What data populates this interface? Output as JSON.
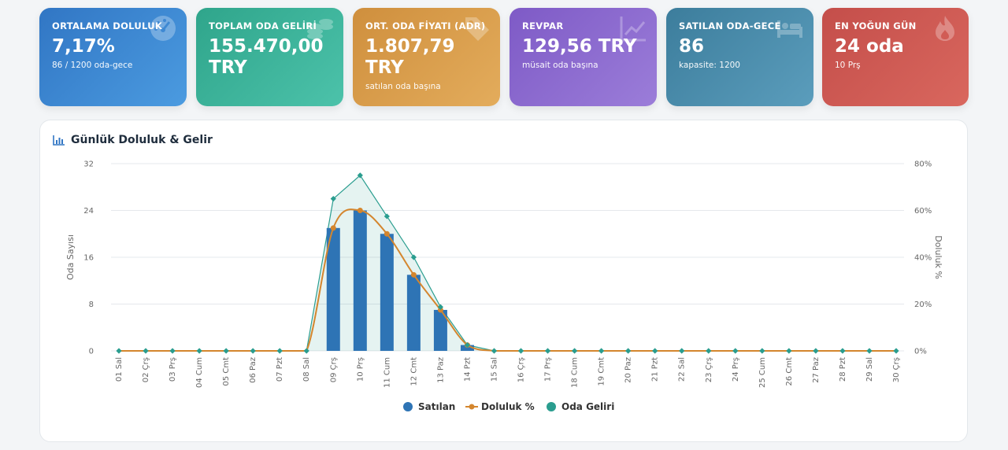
{
  "cards": [
    {
      "label": "ORTALAMA DOLULUK",
      "value": "7,17%",
      "sub": "86 / 1200 oda-gece",
      "icon": "gauge-icon"
    },
    {
      "label": "TOPLAM ODA GELİRİ",
      "value": "155.470,00 TRY",
      "sub": "",
      "icon": "coins-icon"
    },
    {
      "label": "ORT. ODA FİYATI (ADR)",
      "value": "1.807,79 TRY",
      "sub": "satılan oda başına",
      "icon": "tag-icon"
    },
    {
      "label": "REVPAR",
      "value": "129,56 TRY",
      "sub": "müsait oda başına",
      "icon": "chart-line-icon"
    },
    {
      "label": "SATILAN ODA-GECE",
      "value": "86",
      "sub": "kapasite: 1200",
      "icon": "bed-icon"
    },
    {
      "label": "EN YOĞUN GÜN",
      "value": "24 oda",
      "sub": "10 Prş",
      "icon": "fire-icon"
    }
  ],
  "panel": {
    "title": "Günlük Doluluk & Gelir",
    "icon": "chart-bar-icon"
  },
  "colors": {
    "sold": "#2e74b5",
    "occupancy": "#d4862e",
    "revenue": "#2a9d8f"
  },
  "chart_data": {
    "type": "bar",
    "categories": [
      "01 Sal",
      "02 Çrş",
      "03 Prş",
      "04 Cum",
      "05 Cmt",
      "06 Paz",
      "07 Pzt",
      "08 Sal",
      "09 Çrş",
      "10 Prş",
      "11 Cum",
      "12 Cmt",
      "13 Paz",
      "14 Pzt",
      "15 Sal",
      "16 Çrş",
      "17 Prş",
      "18 Cum",
      "19 Cmt",
      "20 Paz",
      "21 Pzt",
      "22 Sal",
      "23 Çrş",
      "24 Prş",
      "25 Cum",
      "26 Cmt",
      "27 Paz",
      "28 Pzt",
      "29 Sal",
      "30 Çrş"
    ],
    "series": [
      {
        "name": "Satılan",
        "type": "bar",
        "axis": "left",
        "values": [
          0,
          0,
          0,
          0,
          0,
          0,
          0,
          0,
          21,
          24,
          20,
          13,
          7,
          1,
          0,
          0,
          0,
          0,
          0,
          0,
          0,
          0,
          0,
          0,
          0,
          0,
          0,
          0,
          0,
          0
        ]
      },
      {
        "name": "Doluluk %",
        "type": "line",
        "axis": "right",
        "values": [
          0,
          0,
          0,
          0,
          0,
          0,
          0,
          0,
          52.5,
          60,
          50,
          32.5,
          17.5,
          2.5,
          0,
          0,
          0,
          0,
          0,
          0,
          0,
          0,
          0,
          0,
          0,
          0,
          0,
          0,
          0,
          0
        ]
      },
      {
        "name": "Oda Geliri",
        "type": "area",
        "axis": "left",
        "values": [
          0,
          0,
          0,
          0,
          0,
          0,
          0,
          0,
          26,
          30,
          23,
          16,
          7.5,
          1,
          0,
          0,
          0,
          0,
          0,
          0,
          0,
          0,
          0,
          0,
          0,
          0,
          0,
          0,
          0,
          0
        ]
      }
    ],
    "ylabel": "Oda Sayısı",
    "y2label": "Doluluk %",
    "ylim": [
      0,
      32
    ],
    "yticks": [
      "0",
      "8",
      "16",
      "24",
      "32"
    ],
    "y2lim": [
      0,
      80
    ],
    "y2ticks": [
      "0%",
      "20%",
      "40%",
      "60%",
      "80%"
    ],
    "grid": true,
    "legend": "bottom"
  }
}
